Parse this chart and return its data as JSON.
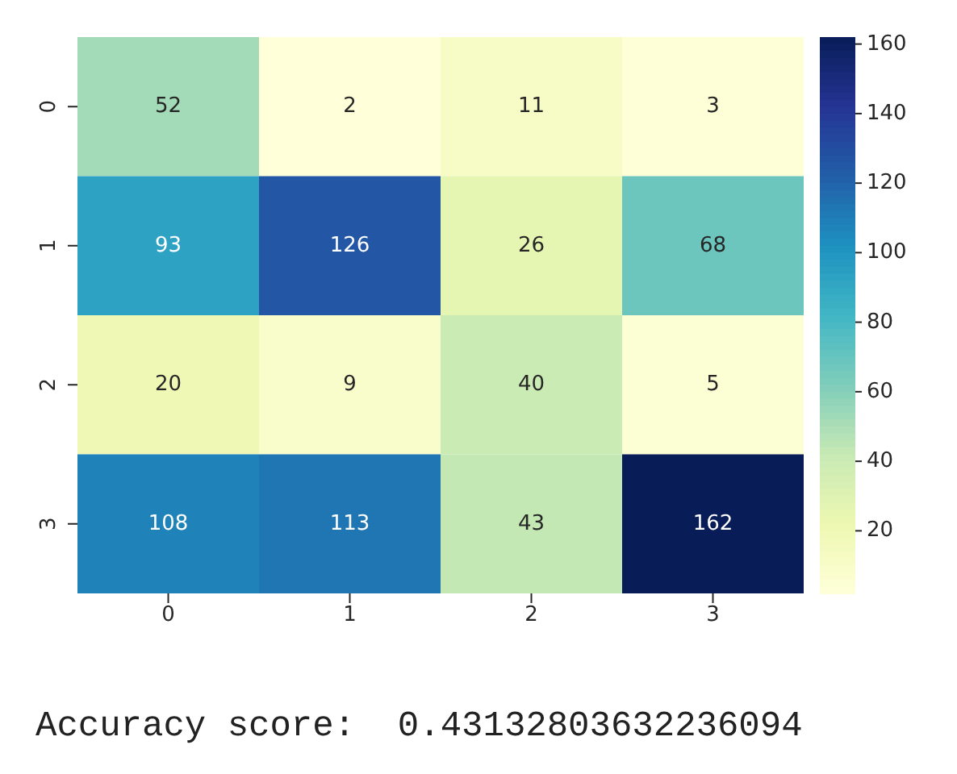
{
  "chart_data": {
    "type": "heatmap",
    "categories": [
      "0",
      "1",
      "2",
      "3"
    ],
    "y_categories": [
      "0",
      "1",
      "2",
      "3"
    ],
    "cells": [
      [
        52,
        2,
        11,
        3
      ],
      [
        93,
        126,
        26,
        68
      ],
      [
        20,
        9,
        40,
        5
      ],
      [
        108,
        113,
        43,
        162
      ]
    ],
    "data_labels": true,
    "clim": [
      2,
      162
    ],
    "cticks": [
      20,
      40,
      60,
      80,
      100,
      120,
      140,
      160
    ],
    "annotations": [
      "Accuracy score:  0.43132803632236094"
    ]
  }
}
